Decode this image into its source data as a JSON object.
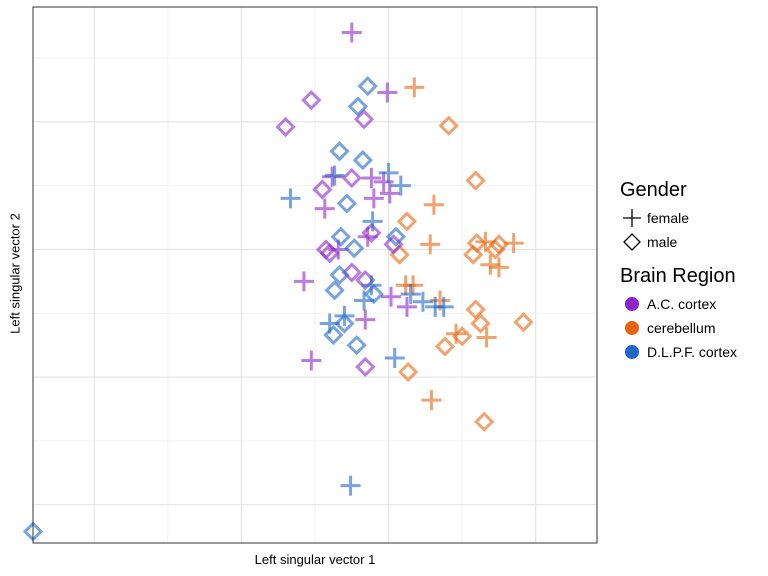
{
  "chart_data": {
    "type": "scatter",
    "xlabel": "Left singular vector 1",
    "ylabel": "Left singular vector 2",
    "xlim": [
      -0.29,
      0.17
    ],
    "ylim": [
      -0.23,
      0.19
    ],
    "x_major_ticks": [
      -0.24,
      -0.12,
      0.0,
      0.12
    ],
    "x_minor_ticks": [
      -0.18,
      -0.06,
      0.06
    ],
    "y_major_ticks": [
      -0.2,
      -0.1,
      0.0,
      0.1
    ],
    "y_minor_ticks": [
      -0.15,
      -0.05,
      0.05,
      0.15
    ],
    "grid": true,
    "legend_position": "right",
    "legends": [
      {
        "title": "Gender",
        "entries": [
          {
            "label": "female",
            "shape": "plus"
          },
          {
            "label": "male",
            "shape": "diamond"
          }
        ]
      },
      {
        "title": "Brain Region",
        "entries": [
          {
            "label": "A.C. cortex",
            "color": "#8e24c9"
          },
          {
            "label": "cerebellum",
            "color": "#e8650f"
          },
          {
            "label": "D.L.P.F. cortex",
            "color": "#1e66c8"
          }
        ]
      }
    ],
    "series": [
      {
        "name": "A.C. cortex",
        "color": "#8e24c9",
        "female": [
          [
            -0.03,
            0.17
          ],
          [
            -0.001,
            0.123
          ],
          [
            -0.046,
            0.057
          ],
          [
            -0.014,
            0.056
          ],
          [
            -0.004,
            0.053
          ],
          [
            -0.012,
            0.04
          ],
          [
            -0.052,
            0.032
          ],
          [
            -0.017,
            0.01
          ],
          [
            -0.041,
            0.0
          ],
          [
            -0.069,
            -0.025
          ],
          [
            0.015,
            -0.045
          ],
          [
            -0.019,
            -0.055
          ],
          [
            -0.063,
            -0.087
          ],
          [
            0.001,
            0.044
          ],
          [
            0.002,
            -0.037
          ]
        ],
        "male": [
          [
            -0.063,
            0.117
          ],
          [
            -0.084,
            0.096
          ],
          [
            -0.02,
            0.102
          ],
          [
            -0.054,
            0.047
          ],
          [
            -0.03,
            0.056
          ],
          [
            -0.051,
            0.0
          ],
          [
            -0.048,
            -0.003
          ],
          [
            -0.014,
            0.013
          ],
          [
            0.004,
            0.004
          ],
          [
            -0.03,
            -0.018
          ],
          [
            -0.019,
            -0.024
          ],
          [
            -0.019,
            -0.092
          ]
        ]
      },
      {
        "name": "cerebellum",
        "color": "#e8650f",
        "female": [
          [
            0.021,
            0.127
          ],
          [
            0.037,
            0.035
          ],
          [
            0.034,
            0.004
          ],
          [
            0.079,
            0.006
          ],
          [
            0.102,
            0.005
          ],
          [
            0.09,
            -0.014
          ],
          [
            0.083,
            -0.012
          ],
          [
            0.014,
            -0.028
          ],
          [
            0.02,
            -0.028
          ],
          [
            0.042,
            -0.04
          ],
          [
            0.055,
            -0.066
          ],
          [
            0.08,
            -0.069
          ],
          [
            0.035,
            -0.118
          ]
        ],
        "male": [
          [
            0.049,
            0.097
          ],
          [
            0.071,
            0.054
          ],
          [
            0.015,
            0.022
          ],
          [
            0.072,
            0.005
          ],
          [
            0.09,
            0.004
          ],
          [
            0.009,
            -0.004
          ],
          [
            0.069,
            -0.004
          ],
          [
            0.087,
            0.0
          ],
          [
            0.071,
            -0.047
          ],
          [
            0.075,
            -0.058
          ],
          [
            0.11,
            -0.057
          ],
          [
            0.046,
            -0.076
          ],
          [
            0.06,
            -0.068
          ],
          [
            0.016,
            -0.096
          ],
          [
            0.078,
            -0.135
          ]
        ]
      },
      {
        "name": "D.L.P.F. cortex",
        "color": "#1e66c8",
        "female": [
          [
            0.0,
            0.06
          ],
          [
            0.01,
            0.05
          ],
          [
            -0.044,
            0.058
          ],
          [
            -0.08,
            0.04
          ],
          [
            -0.013,
            0.022
          ],
          [
            -0.02,
            -0.04
          ],
          [
            -0.014,
            -0.028
          ],
          [
            -0.036,
            -0.052
          ],
          [
            -0.048,
            -0.058
          ],
          [
            0.005,
            -0.085
          ],
          [
            -0.031,
            -0.185
          ],
          [
            0.028,
            -0.041
          ],
          [
            0.038,
            -0.045
          ],
          [
            0.045,
            -0.045
          ],
          [
            0.018,
            -0.035
          ]
        ],
        "male": [
          [
            -0.017,
            0.128
          ],
          [
            -0.025,
            0.112
          ],
          [
            -0.04,
            0.077
          ],
          [
            -0.021,
            0.07
          ],
          [
            -0.034,
            0.036
          ],
          [
            -0.039,
            0.01
          ],
          [
            -0.028,
            0.001
          ],
          [
            0.006,
            0.01
          ],
          [
            -0.04,
            -0.02
          ],
          [
            -0.044,
            -0.032
          ],
          [
            -0.036,
            -0.058
          ],
          [
            -0.012,
            -0.035
          ],
          [
            -0.045,
            -0.067
          ],
          [
            -0.026,
            -0.075
          ],
          [
            -0.29,
            -0.221
          ]
        ]
      }
    ]
  }
}
